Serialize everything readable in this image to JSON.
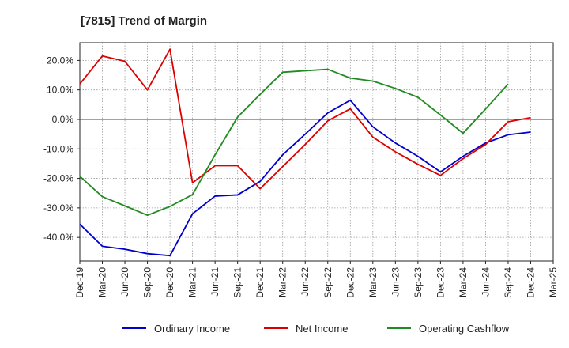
{
  "chart_data": {
    "type": "line",
    "title": "[7815]  Trend of Margin",
    "xlabel": "",
    "ylabel": "",
    "ylim": [
      -48,
      26
    ],
    "yticks": [
      20,
      10,
      0,
      -10,
      -20,
      -30,
      -40
    ],
    "ytick_labels": [
      "20.0%",
      "10.0%",
      "0.0%",
      "-10.0%",
      "-20.0%",
      "-30.0%",
      "-40.0%"
    ],
    "categories": [
      "Dec-19",
      "Mar-20",
      "Jun-20",
      "Sep-20",
      "Dec-20",
      "Mar-21",
      "Jun-21",
      "Sep-21",
      "Dec-21",
      "Mar-22",
      "Jun-22",
      "Sep-22",
      "Dec-22",
      "Mar-23",
      "Jun-23",
      "Sep-23",
      "Dec-23",
      "Mar-24",
      "Jun-24",
      "Sep-24",
      "Dec-24",
      "Mar-25"
    ],
    "grid": true,
    "legend_position": "bottom",
    "series": [
      {
        "name": "Ordinary Income",
        "color": "#0000cc",
        "values": [
          -35.5,
          -43,
          -44,
          -45.5,
          -46.2,
          -32,
          -26,
          -25.6,
          -21,
          -12,
          -5,
          2.2,
          6.5,
          -2.5,
          -8,
          -12.5,
          -17.8,
          -12.5,
          -8,
          -5.2,
          -4.3,
          null
        ]
      },
      {
        "name": "Net Income",
        "color": "#dd0000",
        "values": [
          12,
          21.5,
          19.7,
          10,
          23.8,
          -21.5,
          -15.7,
          -15.7,
          -23.5,
          -16,
          -8.5,
          -0.5,
          3.6,
          -6,
          -11,
          -15.2,
          -19,
          -13.3,
          -8.5,
          -0.8,
          0.6,
          null
        ]
      },
      {
        "name": "Operating Cashflow",
        "color": "#228b22",
        "values": [
          -19.3,
          -26.2,
          -29.3,
          -32.5,
          -29.5,
          -25.5,
          -12,
          0.8,
          8.5,
          16,
          16.5,
          17,
          14,
          13,
          10.5,
          7.5,
          1.5,
          -4.7,
          3.5,
          12,
          null,
          null
        ]
      }
    ]
  }
}
